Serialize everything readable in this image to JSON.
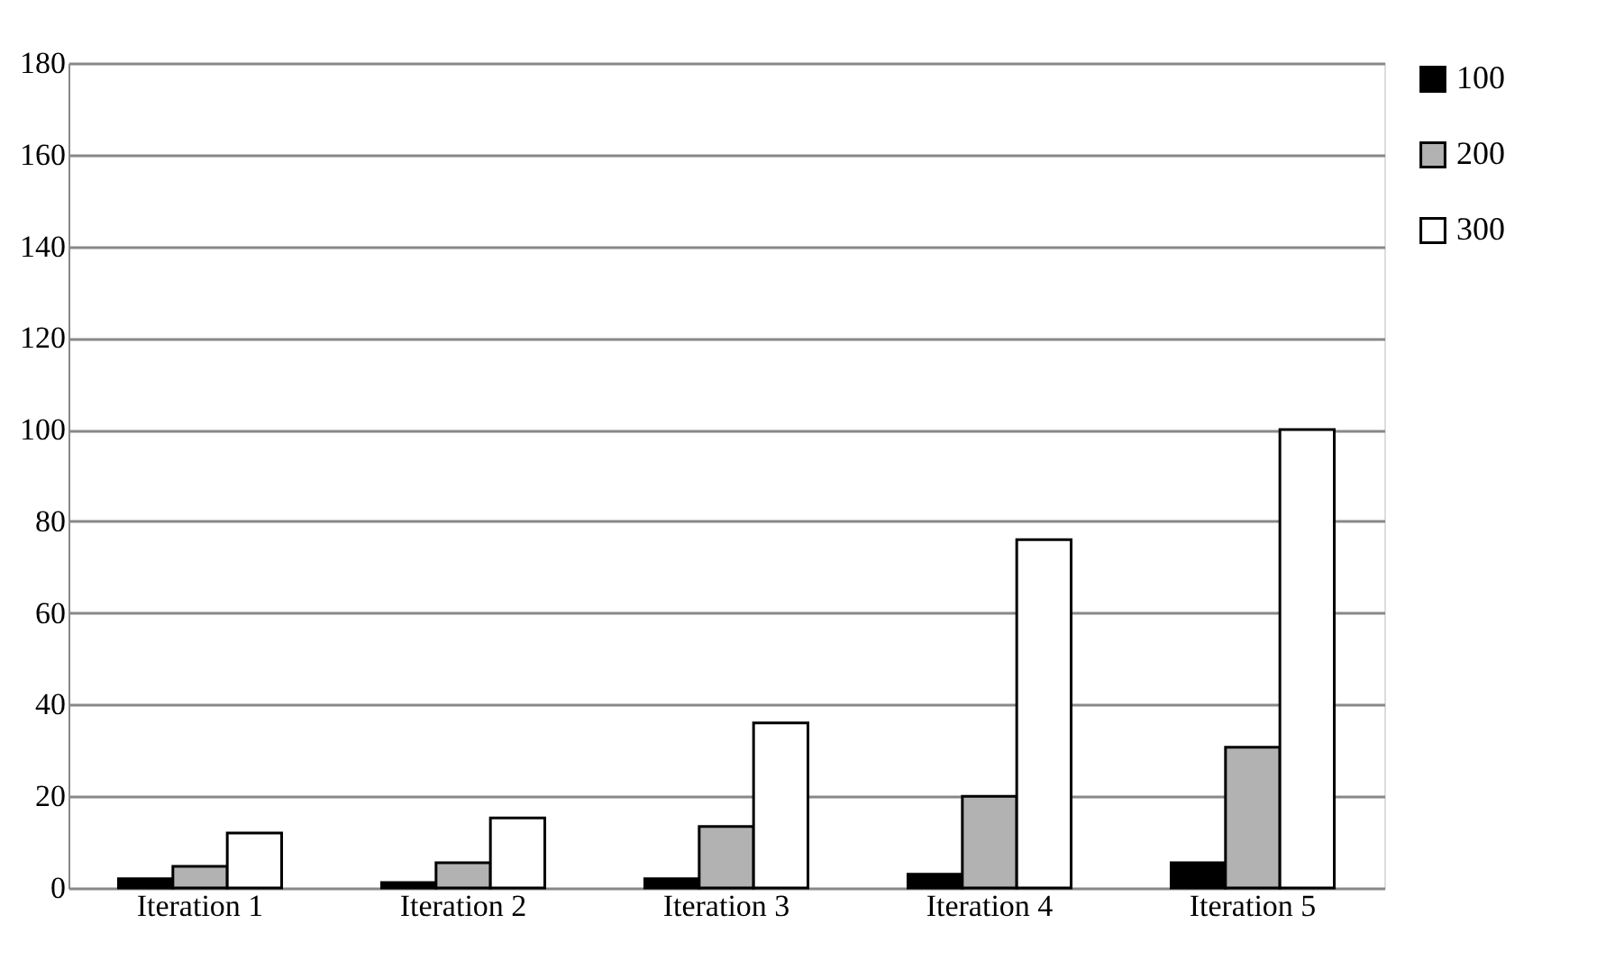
{
  "chart_data": {
    "type": "bar",
    "categories": [
      "Iteration 1",
      "Iteration 2",
      "Iteration 3",
      "Iteration 4",
      "Iteration 5"
    ],
    "series": [
      {
        "name": "100",
        "color": "#000000",
        "values": [
          2,
          1.2,
          2,
          3,
          5.5
        ]
      },
      {
        "name": "200",
        "color": "#b2b2b2",
        "values": [
          4.7,
          5.5,
          13.4,
          20,
          30.7
        ]
      },
      {
        "name": "300",
        "color": "#ffffff",
        "values": [
          12,
          15.3,
          36,
          76,
          100
        ]
      }
    ],
    "ylim": [
      0,
      180
    ],
    "yticks": [
      0,
      20,
      40,
      60,
      80,
      100,
      120,
      140,
      160,
      180
    ],
    "grid": "y",
    "legend": "right"
  }
}
